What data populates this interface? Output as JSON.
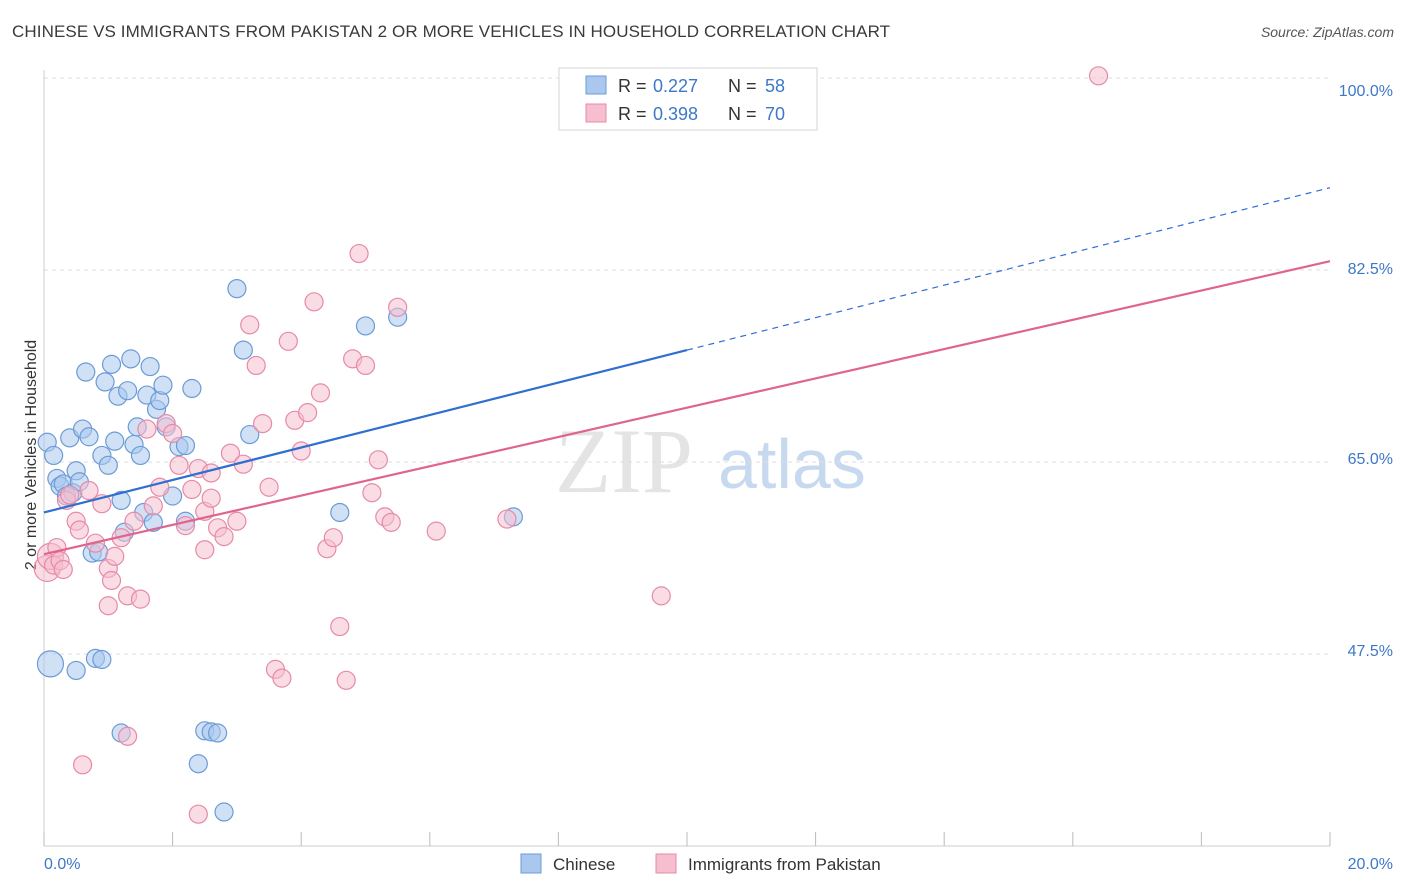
{
  "title": "CHINESE VS IMMIGRANTS FROM PAKISTAN 2 OR MORE VEHICLES IN HOUSEHOLD CORRELATION CHART",
  "source": "Source: ZipAtlas.com",
  "watermark": {
    "zip": "ZIP",
    "atlas": "atlas"
  },
  "colors": {
    "chinese_fill": "#aac8ee",
    "chinese_stroke": "#6b9bd6",
    "chinese_line": "#2f6fd0",
    "pakistan_fill": "#f6bfd0",
    "pakistan_stroke": "#e68aa8",
    "pakistan_line": "#e0648e",
    "label_blue": "#3d78c8",
    "grid": "#dddddd"
  },
  "legend": {
    "rows": [
      {
        "r_label": "R = ",
        "r_value": "0.227",
        "n_label": "N = ",
        "n_value": "58"
      },
      {
        "r_label": "R = ",
        "r_value": "0.398",
        "n_label": "N = ",
        "n_value": "70"
      }
    ]
  },
  "bottom_legend": [
    "Chinese",
    "Immigrants from Pakistan"
  ],
  "chart_data": {
    "type": "scatter",
    "title": "CHINESE VS IMMIGRANTS FROM PAKISTAN 2 OR MORE VEHICLES IN HOUSEHOLD CORRELATION CHART",
    "xlabel": "",
    "ylabel": "2 or more Vehicles in Household",
    "xlim": [
      0,
      20
    ],
    "ylim": [
      31.5,
      102
    ],
    "x_tick_labels": [
      "0.0%",
      "20.0%"
    ],
    "y_ticks": [
      47.5,
      65.0,
      82.5,
      100.0
    ],
    "y_tick_labels": [
      "47.5%",
      "65.0%",
      "82.5%",
      "100.0%"
    ],
    "grid": true,
    "legend_position": "top-center",
    "series": [
      {
        "name": "Chinese",
        "R": 0.227,
        "N": 58,
        "trend": {
          "x0": 0,
          "y0": 60.4,
          "x1": 10,
          "y1": 75.2,
          "dashed_to_x": 20,
          "dashed_to_y": 90.0
        },
        "points": [
          [
            0.05,
            66.8
          ],
          [
            0.15,
            65.6
          ],
          [
            0.2,
            63.5
          ],
          [
            0.25,
            62.8
          ],
          [
            0.3,
            63.0
          ],
          [
            0.35,
            61.9
          ],
          [
            0.4,
            67.2
          ],
          [
            0.45,
            62.2
          ],
          [
            0.5,
            64.2
          ],
          [
            0.55,
            63.2
          ],
          [
            0.6,
            68.0
          ],
          [
            0.65,
            73.2
          ],
          [
            0.7,
            67.3
          ],
          [
            0.75,
            56.7
          ],
          [
            0.8,
            47.1
          ],
          [
            0.85,
            56.8
          ],
          [
            0.9,
            65.6
          ],
          [
            0.95,
            72.3
          ],
          [
            1.0,
            64.7
          ],
          [
            1.05,
            73.9
          ],
          [
            1.1,
            66.9
          ],
          [
            1.15,
            71.0
          ],
          [
            1.2,
            61.5
          ],
          [
            1.25,
            58.6
          ],
          [
            1.3,
            71.5
          ],
          [
            1.35,
            74.4
          ],
          [
            1.4,
            66.6
          ],
          [
            1.45,
            68.2
          ],
          [
            1.5,
            65.6
          ],
          [
            1.55,
            60.4
          ],
          [
            1.6,
            71.1
          ],
          [
            1.65,
            73.7
          ],
          [
            1.7,
            59.5
          ],
          [
            1.75,
            69.8
          ],
          [
            1.8,
            70.6
          ],
          [
            1.85,
            72.0
          ],
          [
            1.9,
            68.2
          ],
          [
            2.0,
            61.9
          ],
          [
            2.1,
            66.4
          ],
          [
            2.2,
            59.6
          ],
          [
            2.3,
            71.7
          ],
          [
            2.4,
            37.5
          ],
          [
            2.5,
            40.5
          ],
          [
            2.6,
            40.4
          ],
          [
            2.7,
            40.3
          ],
          [
            2.8,
            33.1
          ],
          [
            3.0,
            80.8
          ],
          [
            3.1,
            75.2
          ],
          [
            3.2,
            67.5
          ],
          [
            4.6,
            60.4
          ],
          [
            5.0,
            77.4
          ],
          [
            5.5,
            78.2
          ],
          [
            7.3,
            60.0
          ],
          [
            0.1,
            46.6
          ],
          [
            0.5,
            46.0
          ],
          [
            0.9,
            47.0
          ],
          [
            1.2,
            40.3
          ],
          [
            2.2,
            66.5
          ]
        ]
      },
      {
        "name": "Immigrants from Pakistan",
        "R": 0.398,
        "N": 70,
        "trend": {
          "x0": 0,
          "y0": 56.6,
          "x1": 20,
          "y1": 83.3
        },
        "points": [
          [
            0.05,
            55.3
          ],
          [
            0.1,
            56.4
          ],
          [
            0.15,
            55.6
          ],
          [
            0.2,
            57.2
          ],
          [
            0.25,
            56.0
          ],
          [
            0.3,
            55.2
          ],
          [
            0.35,
            61.5
          ],
          [
            0.4,
            62.0
          ],
          [
            0.5,
            59.6
          ],
          [
            0.55,
            58.8
          ],
          [
            0.6,
            37.4
          ],
          [
            0.7,
            62.4
          ],
          [
            0.8,
            57.6
          ],
          [
            0.9,
            61.2
          ],
          [
            1.0,
            55.3
          ],
          [
            1.05,
            54.2
          ],
          [
            1.1,
            56.4
          ],
          [
            1.2,
            58.1
          ],
          [
            1.3,
            52.8
          ],
          [
            1.4,
            59.6
          ],
          [
            1.5,
            52.5
          ],
          [
            1.6,
            68.0
          ],
          [
            1.7,
            61.0
          ],
          [
            1.8,
            62.7
          ],
          [
            1.9,
            68.5
          ],
          [
            2.0,
            67.6
          ],
          [
            2.1,
            64.7
          ],
          [
            2.2,
            59.2
          ],
          [
            2.3,
            62.5
          ],
          [
            2.4,
            64.4
          ],
          [
            2.5,
            60.5
          ],
          [
            2.6,
            61.7
          ],
          [
            2.7,
            59.0
          ],
          [
            2.8,
            58.2
          ],
          [
            2.9,
            65.8
          ],
          [
            3.0,
            59.6
          ],
          [
            3.1,
            64.8
          ],
          [
            3.2,
            77.5
          ],
          [
            3.3,
            73.8
          ],
          [
            3.4,
            68.5
          ],
          [
            3.5,
            62.7
          ],
          [
            3.6,
            46.1
          ],
          [
            3.7,
            45.3
          ],
          [
            3.8,
            76.0
          ],
          [
            3.9,
            68.8
          ],
          [
            4.0,
            66.0
          ],
          [
            4.1,
            69.5
          ],
          [
            4.2,
            79.6
          ],
          [
            4.3,
            71.3
          ],
          [
            4.4,
            57.1
          ],
          [
            4.5,
            58.1
          ],
          [
            4.6,
            50.0
          ],
          [
            4.7,
            45.1
          ],
          [
            4.8,
            74.4
          ],
          [
            4.9,
            84.0
          ],
          [
            5.0,
            73.8
          ],
          [
            5.1,
            62.2
          ],
          [
            5.2,
            65.2
          ],
          [
            5.3,
            60.0
          ],
          [
            5.4,
            59.5
          ],
          [
            5.5,
            79.1
          ],
          [
            6.1,
            58.7
          ],
          [
            7.2,
            59.8
          ],
          [
            9.6,
            52.8
          ],
          [
            16.4,
            100.2
          ],
          [
            1.3,
            40.0
          ],
          [
            2.4,
            32.9
          ],
          [
            1.0,
            51.9
          ],
          [
            2.5,
            57.0
          ],
          [
            2.6,
            64.0
          ]
        ]
      }
    ]
  }
}
